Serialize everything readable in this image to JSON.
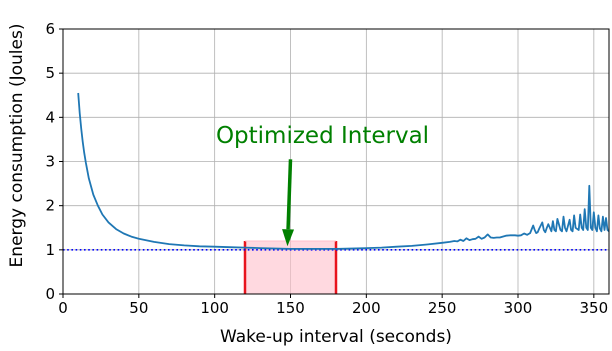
{
  "chart_data": {
    "type": "line",
    "title": "",
    "xlabel": "Wake-up interval (seconds)",
    "ylabel": "Energy consumption (Joules)",
    "xlim": [
      0,
      360
    ],
    "ylim": [
      0,
      6
    ],
    "xticks": [
      0,
      50,
      100,
      150,
      200,
      250,
      300,
      350
    ],
    "yticks": [
      0,
      1,
      2,
      3,
      4,
      5,
      6
    ],
    "grid": true,
    "series": [
      {
        "color": "#1f77b4",
        "x": [
          10,
          11,
          12,
          13,
          14,
          15,
          17,
          20,
          23,
          26,
          30,
          35,
          40,
          45,
          50,
          60,
          70,
          80,
          90,
          100,
          110,
          120,
          130,
          140,
          150,
          160,
          170,
          180,
          190,
          200,
          210,
          220,
          230,
          240,
          250,
          255,
          258,
          260,
          262,
          264,
          266,
          268,
          270,
          272,
          274,
          276,
          278,
          280,
          282,
          284,
          286,
          288,
          290,
          292,
          295,
          298,
          300,
          302,
          304,
          306,
          308,
          310,
          311,
          312,
          313,
          314,
          316,
          317,
          318,
          319,
          320,
          322,
          323,
          324,
          325,
          326,
          328,
          329,
          330,
          331,
          332,
          334,
          335,
          336,
          337,
          338,
          340,
          341,
          342,
          343,
          344,
          345,
          346,
          347,
          348,
          349,
          350,
          351,
          352,
          353,
          354,
          355,
          356,
          357,
          358,
          359,
          360
        ],
        "y": [
          4.55,
          4.1,
          3.75,
          3.45,
          3.2,
          2.98,
          2.62,
          2.25,
          2.0,
          1.8,
          1.62,
          1.47,
          1.37,
          1.3,
          1.25,
          1.18,
          1.13,
          1.1,
          1.08,
          1.07,
          1.06,
          1.05,
          1.04,
          1.03,
          1.02,
          1.02,
          1.02,
          1.02,
          1.03,
          1.04,
          1.05,
          1.07,
          1.09,
          1.12,
          1.16,
          1.18,
          1.2,
          1.19,
          1.23,
          1.2,
          1.26,
          1.22,
          1.24,
          1.25,
          1.3,
          1.25,
          1.28,
          1.35,
          1.28,
          1.27,
          1.28,
          1.28,
          1.3,
          1.32,
          1.33,
          1.33,
          1.32,
          1.33,
          1.37,
          1.34,
          1.38,
          1.55,
          1.45,
          1.38,
          1.4,
          1.48,
          1.62,
          1.45,
          1.4,
          1.5,
          1.58,
          1.42,
          1.65,
          1.45,
          1.42,
          1.7,
          1.45,
          1.42,
          1.75,
          1.5,
          1.42,
          1.68,
          1.45,
          1.42,
          1.78,
          1.5,
          1.45,
          1.8,
          1.5,
          1.45,
          1.92,
          1.5,
          1.45,
          2.45,
          1.5,
          1.45,
          1.85,
          1.5,
          1.42,
          1.78,
          1.48,
          1.42,
          1.75,
          1.45,
          1.72,
          1.45,
          1.42
        ]
      }
    ],
    "reference_line": {
      "y": 1.0,
      "color": "#0000ff",
      "style": "dotted"
    },
    "shaded_region": {
      "x_start": 120,
      "x_end": 180,
      "y_top": 1.2,
      "fill": "#ffc0cb",
      "border": "#e8141e"
    },
    "annotation": {
      "text": "Optimized Interval",
      "color": "#008000",
      "text_x": 150,
      "text_y": 3.6,
      "arrow_from_x": 150,
      "arrow_from_y": 3.05,
      "arrow_to_x": 148,
      "arrow_to_y": 1.08
    }
  }
}
